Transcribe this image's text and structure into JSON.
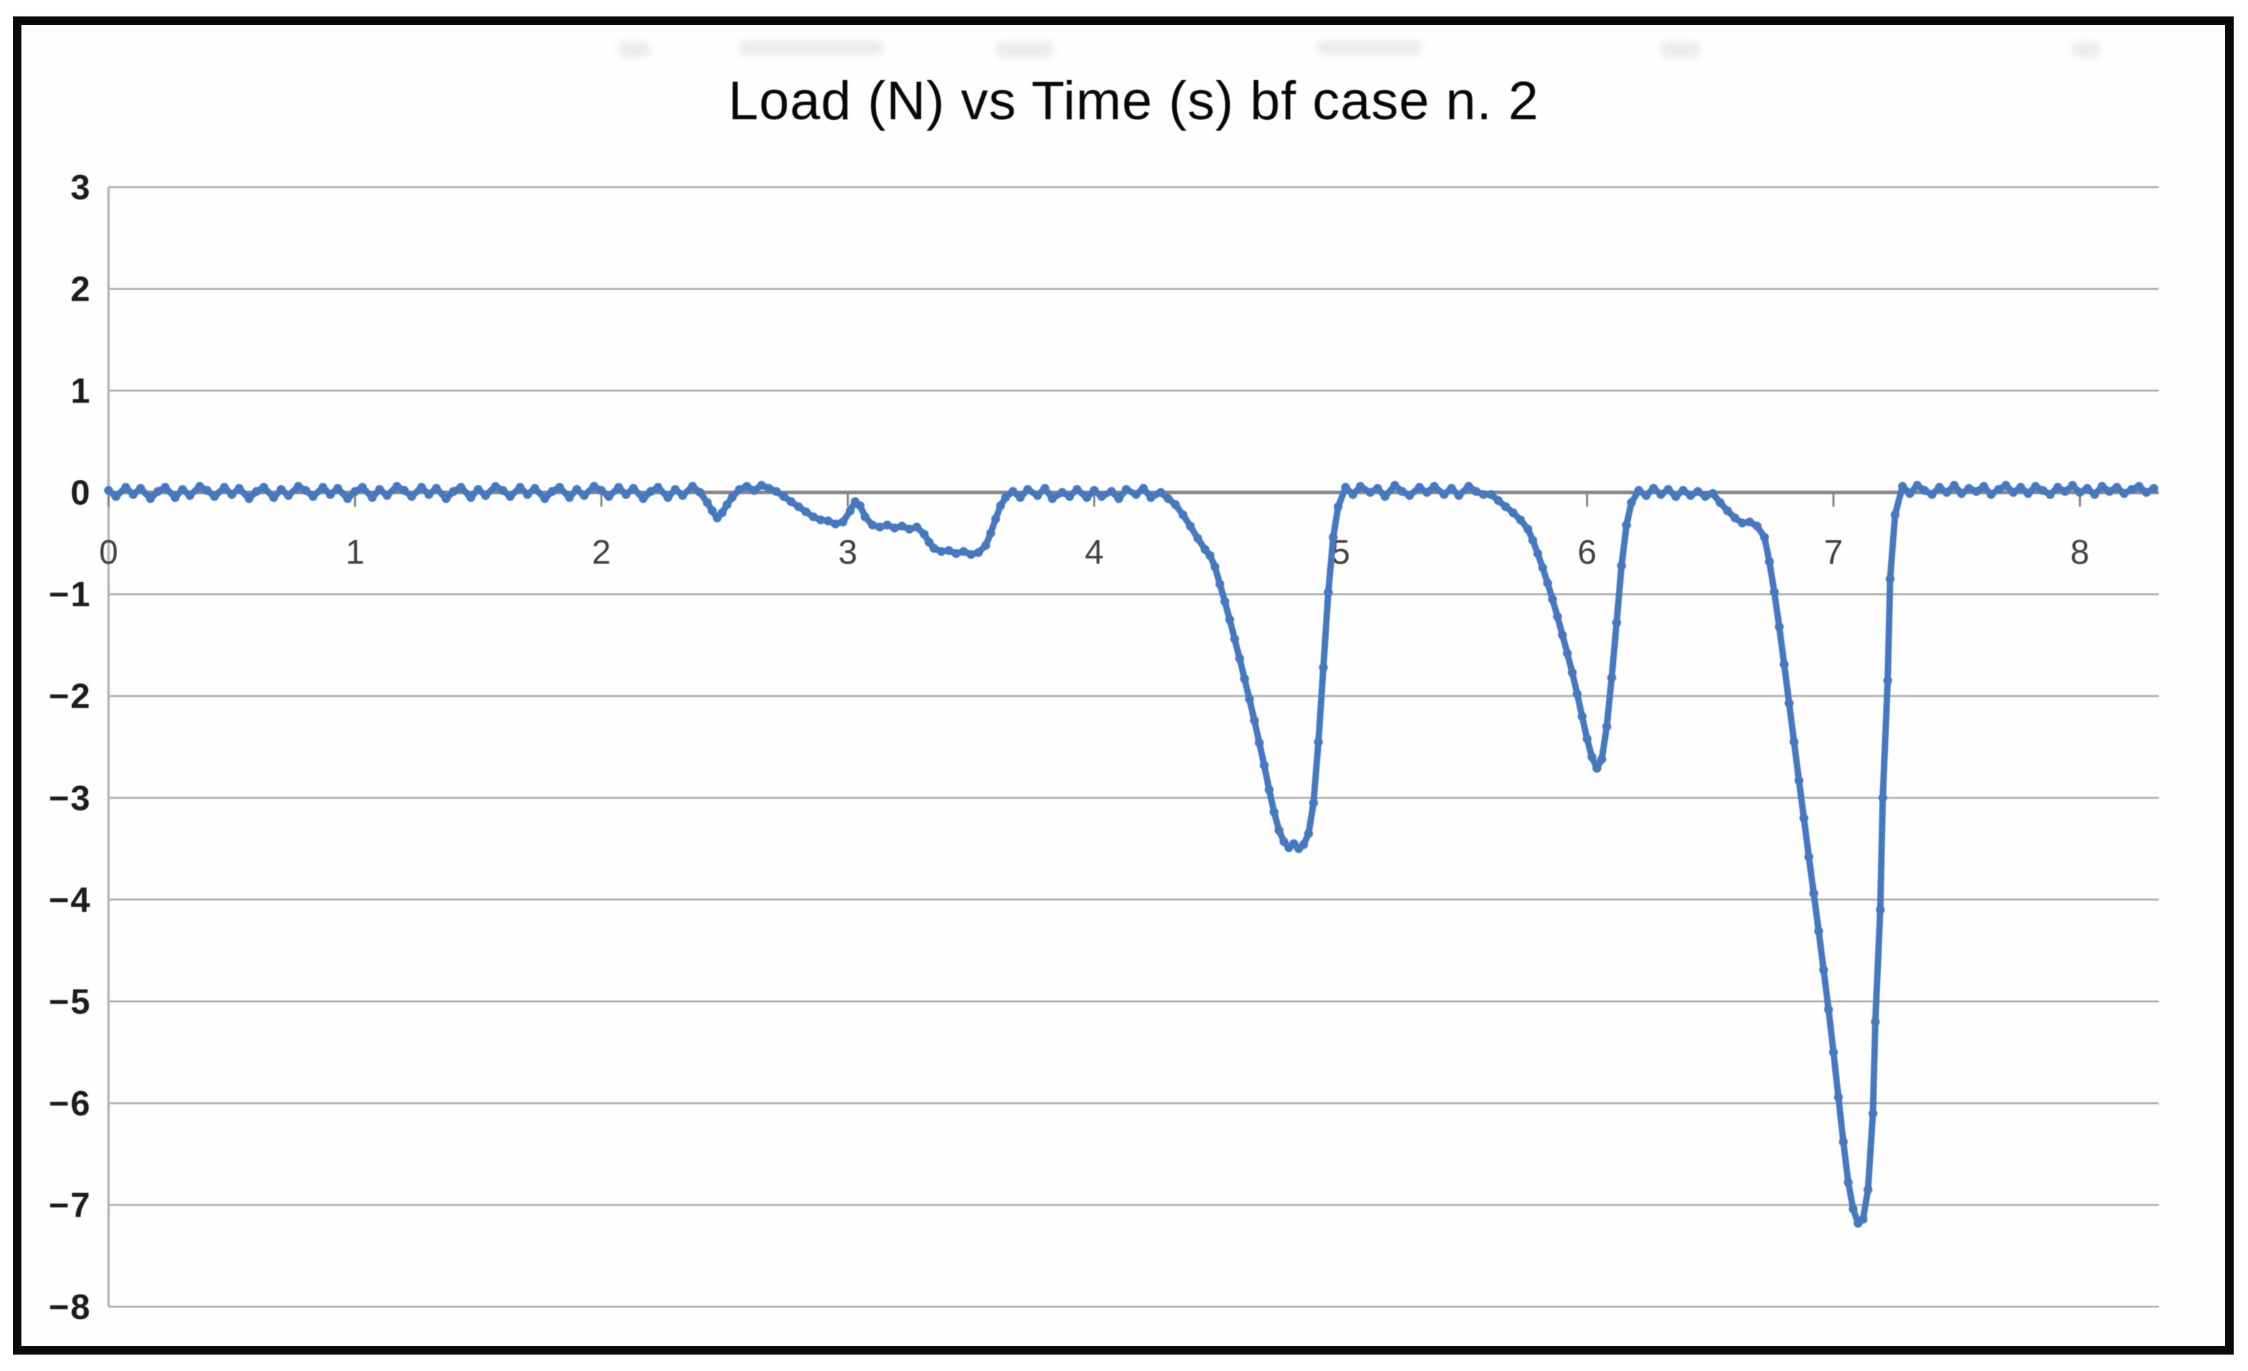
{
  "title": "Load (N) vs Time (s) bf case n. 2",
  "colors": {
    "series_blue": "#4678bf",
    "gridline": "#aaaaaa",
    "zero_axis": "#858585",
    "y_axis_line": "#b5b5b5",
    "y_tick_text": "#1c1c1c",
    "x_tick_text": "#3f3f3f",
    "frame_border": "#0a0a0a",
    "background": "#fefefe"
  },
  "chart_data": {
    "type": "line",
    "title": "Load (N) vs Time (s) bf case n. 2",
    "xlabel": "Time (s)",
    "ylabel": "Load (N)",
    "xlim": [
      0,
      8.32
    ],
    "ylim": [
      -8,
      3
    ],
    "grid": "horizontal",
    "legend": "none",
    "x_ticks": [
      "0",
      "1",
      "2",
      "3",
      "4",
      "5",
      "6",
      "7",
      "8"
    ],
    "x_tick_values": [
      0,
      1,
      2,
      3,
      4,
      5,
      6,
      7,
      8
    ],
    "y_ticks": [
      "3",
      "2",
      "1",
      "0",
      "−1",
      "−2",
      "−3",
      "−4",
      "−5",
      "−6",
      "−7",
      "−8"
    ],
    "y_tick_values": [
      3,
      2,
      1,
      0,
      -1,
      -2,
      -3,
      -4,
      -5,
      -6,
      -7,
      -8
    ],
    "series": [
      {
        "name": "Load (N)",
        "color": "#4678bf",
        "marker": "circle",
        "points": [
          [
            0,
            0.02
          ],
          [
            0.03,
            -0.04
          ],
          [
            0.07,
            0.05
          ],
          [
            0.1,
            -0.02
          ],
          [
            0.13,
            0.04
          ],
          [
            0.17,
            -0.06
          ],
          [
            0.2,
            0.01
          ],
          [
            0.23,
            0.05
          ],
          [
            0.27,
            -0.05
          ],
          [
            0.3,
            0.03
          ],
          [
            0.33,
            -0.03
          ],
          [
            0.37,
            0.06
          ],
          [
            0.4,
            0.02
          ],
          [
            0.43,
            -0.04
          ],
          [
            0.47,
            0.05
          ],
          [
            0.5,
            -0.02
          ],
          [
            0.53,
            0.04
          ],
          [
            0.57,
            -0.06
          ],
          [
            0.6,
            0.01
          ],
          [
            0.63,
            0.05
          ],
          [
            0.67,
            -0.05
          ],
          [
            0.7,
            0.03
          ],
          [
            0.73,
            -0.03
          ],
          [
            0.77,
            0.06
          ],
          [
            0.8,
            0.02
          ],
          [
            0.83,
            -0.04
          ],
          [
            0.87,
            0.05
          ],
          [
            0.9,
            -0.02
          ],
          [
            0.93,
            0.04
          ],
          [
            0.97,
            -0.06
          ],
          [
            1,
            0.01
          ],
          [
            1.03,
            0.05
          ],
          [
            1.07,
            -0.05
          ],
          [
            1.1,
            0.03
          ],
          [
            1.13,
            -0.03
          ],
          [
            1.17,
            0.06
          ],
          [
            1.2,
            0.02
          ],
          [
            1.23,
            -0.04
          ],
          [
            1.27,
            0.05
          ],
          [
            1.3,
            -0.02
          ],
          [
            1.33,
            0.04
          ],
          [
            1.37,
            -0.06
          ],
          [
            1.4,
            0.01
          ],
          [
            1.43,
            0.05
          ],
          [
            1.47,
            -0.05
          ],
          [
            1.5,
            0.03
          ],
          [
            1.53,
            -0.03
          ],
          [
            1.57,
            0.06
          ],
          [
            1.6,
            0.02
          ],
          [
            1.63,
            -0.04
          ],
          [
            1.67,
            0.05
          ],
          [
            1.7,
            -0.02
          ],
          [
            1.73,
            0.04
          ],
          [
            1.77,
            -0.06
          ],
          [
            1.8,
            0.01
          ],
          [
            1.83,
            0.05
          ],
          [
            1.87,
            -0.05
          ],
          [
            1.9,
            0.03
          ],
          [
            1.93,
            -0.03
          ],
          [
            1.97,
            0.06
          ],
          [
            2,
            0.02
          ],
          [
            2.03,
            -0.04
          ],
          [
            2.07,
            0.05
          ],
          [
            2.1,
            -0.02
          ],
          [
            2.13,
            0.04
          ],
          [
            2.17,
            -0.06
          ],
          [
            2.2,
            0.01
          ],
          [
            2.23,
            0.05
          ],
          [
            2.27,
            -0.05
          ],
          [
            2.3,
            0.03
          ],
          [
            2.33,
            -0.03
          ],
          [
            2.37,
            0.06
          ],
          [
            2.4,
            0
          ],
          [
            2.43,
            -0.1
          ],
          [
            2.45,
            -0.18
          ],
          [
            2.47,
            -0.25
          ],
          [
            2.49,
            -0.2
          ],
          [
            2.51,
            -0.12
          ],
          [
            2.53,
            -0.05
          ],
          [
            2.56,
            0.03
          ],
          [
            2.59,
            0.06
          ],
          [
            2.62,
            0.02
          ],
          [
            2.65,
            0.07
          ],
          [
            2.68,
            0.04
          ],
          [
            2.71,
            0.01
          ],
          [
            2.74,
            -0.04
          ],
          [
            2.77,
            -0.09
          ],
          [
            2.8,
            -0.14
          ],
          [
            2.83,
            -0.19
          ],
          [
            2.86,
            -0.24
          ],
          [
            2.89,
            -0.27
          ],
          [
            2.92,
            -0.28
          ],
          [
            2.95,
            -0.31
          ],
          [
            2.98,
            -0.29
          ],
          [
            3.01,
            -0.18
          ],
          [
            3.03,
            -0.09
          ],
          [
            3.05,
            -0.13
          ],
          [
            3.07,
            -0.24
          ],
          [
            3.1,
            -0.32
          ],
          [
            3.13,
            -0.34
          ],
          [
            3.16,
            -0.32
          ],
          [
            3.19,
            -0.35
          ],
          [
            3.22,
            -0.33
          ],
          [
            3.25,
            -0.36
          ],
          [
            3.28,
            -0.34
          ],
          [
            3.31,
            -0.41
          ],
          [
            3.33,
            -0.49
          ],
          [
            3.35,
            -0.55
          ],
          [
            3.38,
            -0.58
          ],
          [
            3.41,
            -0.57
          ],
          [
            3.44,
            -0.6
          ],
          [
            3.47,
            -0.58
          ],
          [
            3.5,
            -0.61
          ],
          [
            3.53,
            -0.59
          ],
          [
            3.56,
            -0.52
          ],
          [
            3.58,
            -0.4
          ],
          [
            3.6,
            -0.26
          ],
          [
            3.62,
            -0.13
          ],
          [
            3.64,
            -0.05
          ],
          [
            3.67,
            0.01
          ],
          [
            3.7,
            -0.05
          ],
          [
            3.73,
            0.03
          ],
          [
            3.77,
            -0.03
          ],
          [
            3.8,
            0.04
          ],
          [
            3.83,
            -0.06
          ],
          [
            3.87,
            0
          ],
          [
            3.9,
            -0.04
          ],
          [
            3.93,
            0.03
          ],
          [
            3.97,
            -0.05
          ],
          [
            4,
            0.02
          ],
          [
            4.03,
            -0.04
          ],
          [
            4.07,
            0.01
          ],
          [
            4.1,
            -0.06
          ],
          [
            4.13,
            0.03
          ],
          [
            4.17,
            -0.02
          ],
          [
            4.2,
            0.04
          ],
          [
            4.23,
            -0.05
          ],
          [
            4.27,
            0
          ],
          [
            4.3,
            -0.06
          ],
          [
            4.33,
            -0.12
          ],
          [
            4.36,
            -0.22
          ],
          [
            4.39,
            -0.33
          ],
          [
            4.42,
            -0.45
          ],
          [
            4.45,
            -0.56
          ],
          [
            4.47,
            -0.62
          ],
          [
            4.49,
            -0.73
          ],
          [
            4.51,
            -0.9
          ],
          [
            4.53,
            -1.07
          ],
          [
            4.55,
            -1.25
          ],
          [
            4.57,
            -1.44
          ],
          [
            4.59,
            -1.63
          ],
          [
            4.61,
            -1.83
          ],
          [
            4.63,
            -2.03
          ],
          [
            4.65,
            -2.24
          ],
          [
            4.67,
            -2.46
          ],
          [
            4.69,
            -2.68
          ],
          [
            4.71,
            -2.92
          ],
          [
            4.73,
            -3.14
          ],
          [
            4.75,
            -3.32
          ],
          [
            4.77,
            -3.43
          ],
          [
            4.79,
            -3.49
          ],
          [
            4.81,
            -3.45
          ],
          [
            4.83,
            -3.5
          ],
          [
            4.85,
            -3.46
          ],
          [
            4.87,
            -3.35
          ],
          [
            4.89,
            -3.05
          ],
          [
            4.91,
            -2.45
          ],
          [
            4.93,
            -1.72
          ],
          [
            4.95,
            -0.98
          ],
          [
            4.97,
            -0.44
          ],
          [
            4.99,
            -0.14
          ],
          [
            5.02,
            0.05
          ],
          [
            5.05,
            -0.02
          ],
          [
            5.08,
            0.06
          ],
          [
            5.12,
            0
          ],
          [
            5.15,
            0.04
          ],
          [
            5.18,
            -0.04
          ],
          [
            5.22,
            0.07
          ],
          [
            5.25,
            0.01
          ],
          [
            5.28,
            -0.03
          ],
          [
            5.32,
            0.05
          ],
          [
            5.35,
            0
          ],
          [
            5.38,
            0.06
          ],
          [
            5.42,
            -0.02
          ],
          [
            5.45,
            0.04
          ],
          [
            5.48,
            -0.03
          ],
          [
            5.52,
            0.06
          ],
          [
            5.55,
            0.01
          ],
          [
            5.58,
            -0.02
          ],
          [
            5.61,
            -0.02
          ],
          [
            5.64,
            -0.08
          ],
          [
            5.67,
            -0.14
          ],
          [
            5.7,
            -0.2
          ],
          [
            5.73,
            -0.27
          ],
          [
            5.76,
            -0.36
          ],
          [
            5.78,
            -0.47
          ],
          [
            5.8,
            -0.6
          ],
          [
            5.82,
            -0.74
          ],
          [
            5.84,
            -0.89
          ],
          [
            5.86,
            -1.05
          ],
          [
            5.88,
            -1.22
          ],
          [
            5.9,
            -1.4
          ],
          [
            5.92,
            -1.58
          ],
          [
            5.94,
            -1.77
          ],
          [
            5.96,
            -1.98
          ],
          [
            5.98,
            -2.2
          ],
          [
            6,
            -2.42
          ],
          [
            6.02,
            -2.6
          ],
          [
            6.04,
            -2.71
          ],
          [
            6.06,
            -2.62
          ],
          [
            6.08,
            -2.3
          ],
          [
            6.1,
            -1.82
          ],
          [
            6.12,
            -1.28
          ],
          [
            6.14,
            -0.72
          ],
          [
            6.16,
            -0.32
          ],
          [
            6.18,
            -0.1
          ],
          [
            6.21,
            0.02
          ],
          [
            6.24,
            -0.03
          ],
          [
            6.27,
            0.04
          ],
          [
            6.3,
            -0.02
          ],
          [
            6.33,
            0.03
          ],
          [
            6.36,
            -0.04
          ],
          [
            6.39,
            0.02
          ],
          [
            6.42,
            -0.03
          ],
          [
            6.45,
            0.01
          ],
          [
            6.48,
            -0.04
          ],
          [
            6.51,
            -0.01
          ],
          [
            6.54,
            -0.1
          ],
          [
            6.57,
            -0.18
          ],
          [
            6.6,
            -0.25
          ],
          [
            6.63,
            -0.3
          ],
          [
            6.66,
            -0.29
          ],
          [
            6.69,
            -0.33
          ],
          [
            6.72,
            -0.44
          ],
          [
            6.74,
            -0.68
          ],
          [
            6.76,
            -0.98
          ],
          [
            6.78,
            -1.32
          ],
          [
            6.8,
            -1.69
          ],
          [
            6.82,
            -2.07
          ],
          [
            6.84,
            -2.45
          ],
          [
            6.86,
            -2.83
          ],
          [
            6.88,
            -3.2
          ],
          [
            6.9,
            -3.58
          ],
          [
            6.92,
            -3.94
          ],
          [
            6.94,
            -4.31
          ],
          [
            6.96,
            -4.69
          ],
          [
            6.98,
            -5.08
          ],
          [
            7,
            -5.5
          ],
          [
            7.02,
            -5.94
          ],
          [
            7.04,
            -6.38
          ],
          [
            7.06,
            -6.78
          ],
          [
            7.08,
            -7.04
          ],
          [
            7.1,
            -7.18
          ],
          [
            7.12,
            -7.14
          ],
          [
            7.14,
            -6.85
          ],
          [
            7.16,
            -6.1
          ],
          [
            7.17,
            -5.2
          ],
          [
            7.19,
            -4.1
          ],
          [
            7.2,
            -3
          ],
          [
            7.22,
            -1.85
          ],
          [
            7.23,
            -0.85
          ],
          [
            7.25,
            -0.22
          ],
          [
            7.28,
            0.06
          ],
          [
            7.31,
            -0.01
          ],
          [
            7.34,
            0.07
          ],
          [
            7.37,
            0.02
          ],
          [
            7.4,
            -0.02
          ],
          [
            7.43,
            0.05
          ],
          [
            7.46,
            0
          ],
          [
            7.49,
            0.07
          ],
          [
            7.52,
            -0.01
          ],
          [
            7.55,
            0.04
          ],
          [
            7.58,
            0.01
          ],
          [
            7.61,
            0.06
          ],
          [
            7.64,
            -0.02
          ],
          [
            7.67,
            0.03
          ],
          [
            7.7,
            0.07
          ],
          [
            7.73,
            0
          ],
          [
            7.76,
            0.05
          ],
          [
            7.79,
            -0.01
          ],
          [
            7.82,
            0.06
          ],
          [
            7.85,
            0.02
          ],
          [
            7.88,
            -0.02
          ],
          [
            7.91,
            0.05
          ],
          [
            7.94,
            0.01
          ],
          [
            7.97,
            0.07
          ],
          [
            8,
            0
          ],
          [
            8.03,
            0.04
          ],
          [
            8.06,
            -0.02
          ],
          [
            8.09,
            0.06
          ],
          [
            8.12,
            0.01
          ],
          [
            8.15,
            0.05
          ],
          [
            8.18,
            -0.01
          ],
          [
            8.21,
            0.03
          ],
          [
            8.24,
            0.06
          ],
          [
            8.27,
            0
          ],
          [
            8.3,
            0.04
          ]
        ]
      }
    ]
  }
}
